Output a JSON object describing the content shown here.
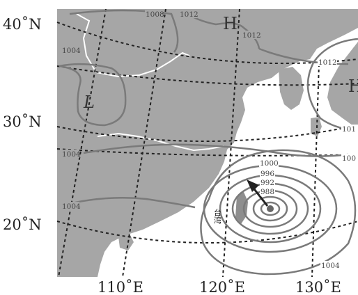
{
  "latitude_labels": [
    "40˚N",
    "30˚N",
    "20˚N"
  ],
  "longitude_labels": [
    "110˚E",
    "120˚E",
    "130˚E"
  ],
  "isobar_labels": {
    "north_1008": "1008",
    "north_1012": "1012",
    "h_1012": "1012",
    "east_1012": "1012",
    "west_1004": "1004",
    "mid_1004": "1004",
    "south_1004": "1004",
    "se_1004": "1004",
    "east_101": "101",
    "east_100": "100",
    "ty_1000": "1000",
    "ty_996": "996",
    "ty_992": "992",
    "ty_988": "988"
  },
  "pressure_centers": {
    "high_north": "H",
    "high_east": "H",
    "low_west": "L"
  },
  "place_label": "台湾",
  "colors": {
    "land": "#a6a6a6",
    "sea": "#ffffff",
    "isobar": "#7a7a7a",
    "graticule": "#222222"
  }
}
